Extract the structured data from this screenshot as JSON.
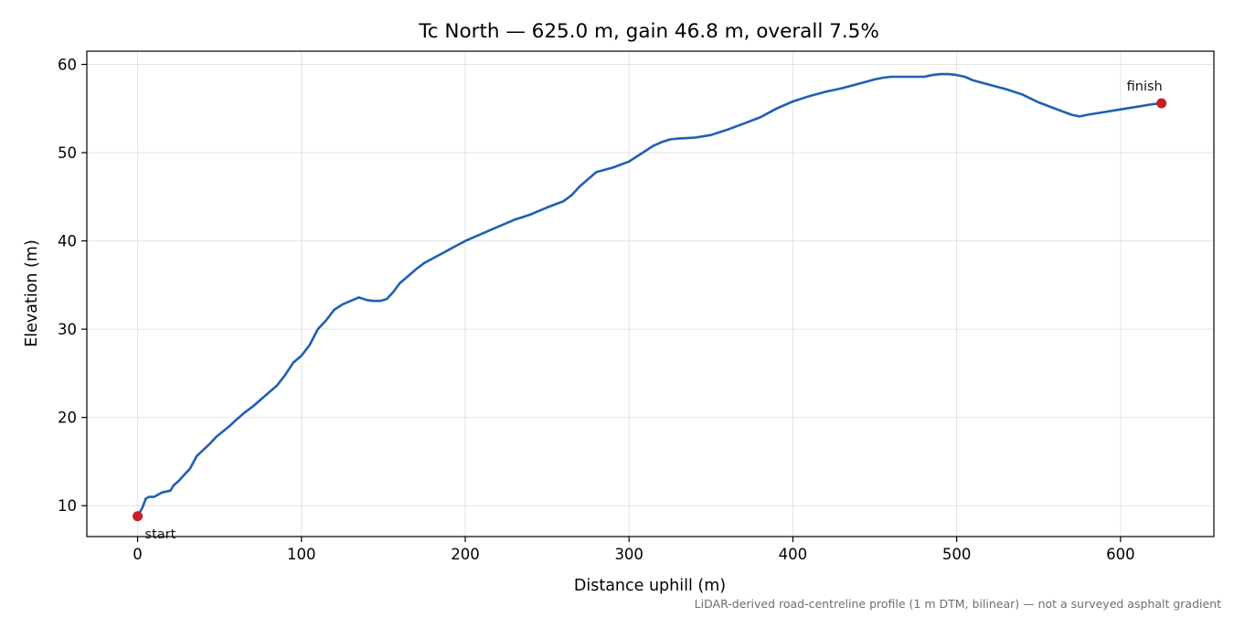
{
  "chart_data": {
    "type": "line",
    "title": "Tc North — 625.0 m, gain 46.8 m, overall 7.5%",
    "xlabel": "Distance uphill (m)",
    "ylabel": "Elevation (m)",
    "xlim": [
      -31,
      657
    ],
    "ylim": [
      6.5,
      61.5
    ],
    "xticks": [
      0,
      100,
      200,
      300,
      400,
      500,
      600
    ],
    "yticks": [
      10,
      20,
      30,
      40,
      50,
      60
    ],
    "grid": true,
    "footnote": "LiDAR-derived road-centreline profile (1 m DTM, bilinear) — not a surveyed asphalt gradient",
    "line_color": "#1f5fb4",
    "marker_color": "#c8202a",
    "series": [
      {
        "x": [
          0,
          3,
          5,
          7,
          10,
          15,
          20,
          22,
          25,
          28,
          32,
          36,
          40,
          44,
          48,
          52,
          56,
          60,
          65,
          70,
          75,
          80,
          85,
          90,
          95,
          100,
          105,
          110,
          115,
          120,
          125,
          130,
          135,
          140,
          144,
          148,
          152,
          156,
          160,
          165,
          170,
          175,
          180,
          185,
          190,
          195,
          200,
          210,
          220,
          230,
          240,
          250,
          260,
          265,
          270,
          275,
          280,
          290,
          300,
          310,
          315,
          320,
          325,
          330,
          340,
          350,
          360,
          370,
          380,
          390,
          400,
          410,
          420,
          430,
          440,
          450,
          455,
          460,
          470,
          480,
          485,
          490,
          495,
          500,
          505,
          510,
          520,
          530,
          540,
          550,
          560,
          570,
          575,
          580,
          590,
          600,
          610,
          620,
          625
        ],
        "y": [
          8.8,
          9.8,
          10.8,
          11.0,
          11.0,
          11.5,
          11.7,
          12.3,
          12.8,
          13.4,
          14.2,
          15.6,
          16.3,
          17.0,
          17.8,
          18.4,
          19.0,
          19.7,
          20.5,
          21.2,
          22.0,
          22.8,
          23.6,
          24.8,
          26.2,
          27.0,
          28.2,
          30.0,
          31.0,
          32.2,
          32.8,
          33.2,
          33.6,
          33.3,
          33.2,
          33.2,
          33.4,
          34.2,
          35.2,
          36.0,
          36.8,
          37.5,
          38.0,
          38.5,
          39.0,
          39.5,
          40.0,
          40.8,
          41.6,
          42.4,
          43.0,
          43.8,
          44.5,
          45.2,
          46.2,
          47.0,
          47.8,
          48.3,
          49.0,
          50.2,
          50.8,
          51.2,
          51.5,
          51.6,
          51.7,
          52.0,
          52.6,
          53.3,
          54.0,
          55.0,
          55.8,
          56.4,
          56.9,
          57.3,
          57.8,
          58.3,
          58.5,
          58.6,
          58.6,
          58.6,
          58.8,
          58.9,
          58.9,
          58.8,
          58.6,
          58.2,
          57.7,
          57.2,
          56.6,
          55.7,
          55.0,
          54.3,
          54.1,
          54.3,
          54.6,
          54.9,
          55.2,
          55.5,
          55.6
        ]
      }
    ],
    "markers": [
      {
        "label": "start",
        "x": 0,
        "y": 8.8
      },
      {
        "label": "finish",
        "x": 625,
        "y": 55.6
      }
    ]
  }
}
